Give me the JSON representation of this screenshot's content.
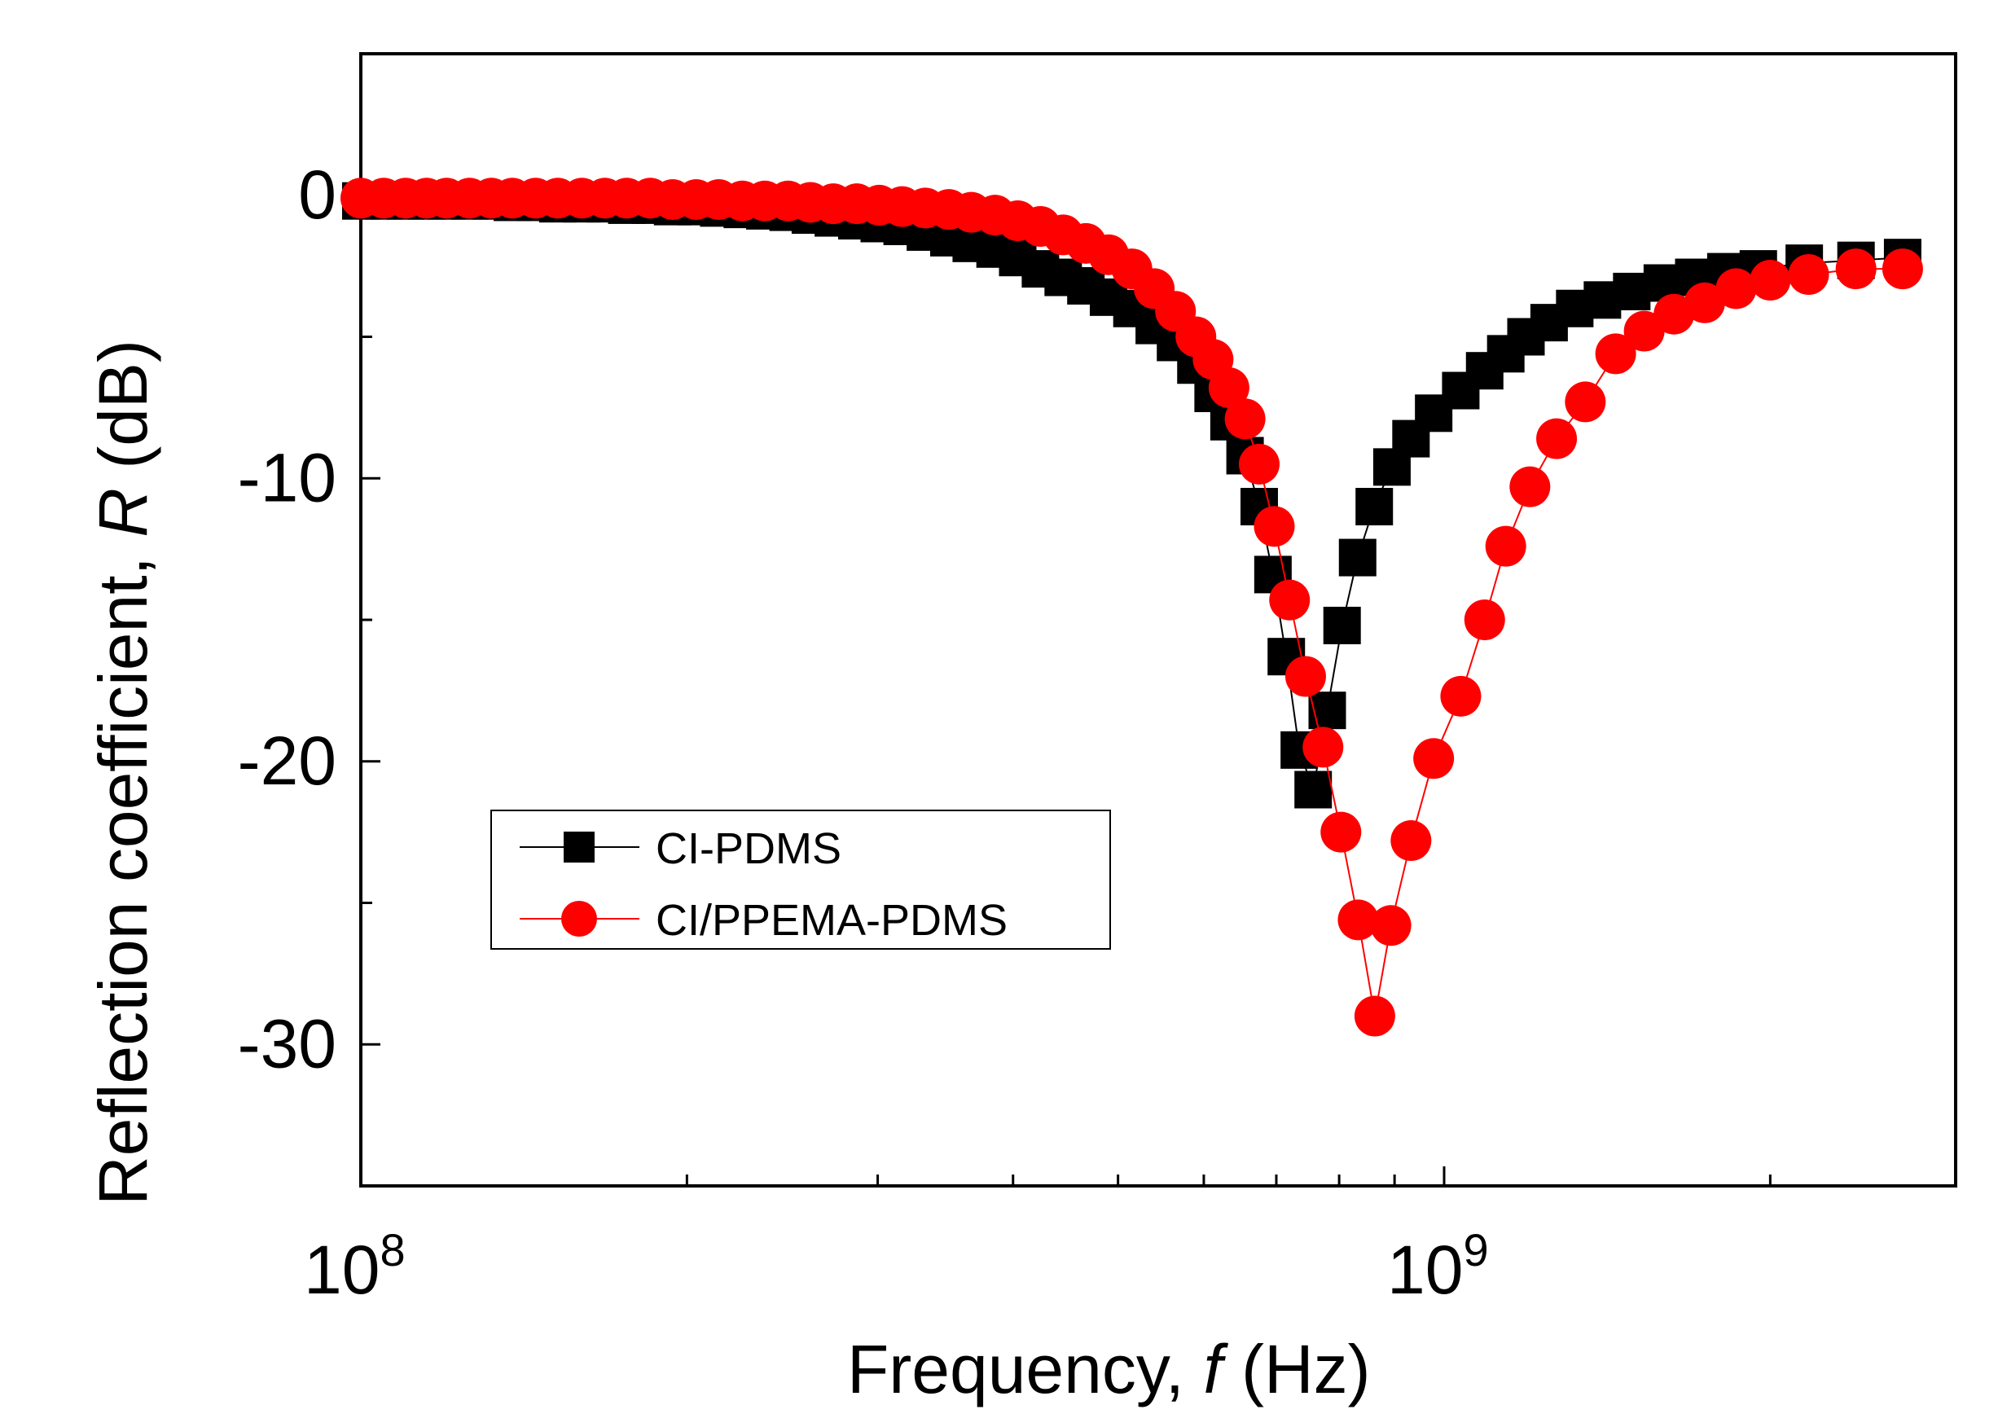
{
  "chart_data": {
    "type": "scatter",
    "title": "",
    "xlabel": {
      "main": "Frequency, ",
      "symbol": "f",
      "unit": " (Hz)"
    },
    "ylabel": {
      "main": "Reflection coefficient, ",
      "symbol": "R",
      "unit": " (dB)"
    },
    "x_scale": "log",
    "xlim": [
      100000000,
      2800000000
    ],
    "ylim": [
      -35,
      5
    ],
    "x_tick_labels": [
      {
        "value": 100000000,
        "base": "10",
        "exp": "8"
      },
      {
        "value": 1000000000,
        "base": "10",
        "exp": "9"
      }
    ],
    "y_ticks": [
      {
        "value": 0,
        "label": "0"
      },
      {
        "value": -10,
        "label": "-10"
      },
      {
        "value": -20,
        "label": "-20"
      },
      {
        "value": -30,
        "label": "-30"
      }
    ],
    "legend_position": "lower-left",
    "series": [
      {
        "name": "CI-PDMS",
        "marker": "square",
        "color": "#000000",
        "x": [
          100000000,
          105000000,
          110000000,
          115000000,
          120000000,
          126000000,
          132000000,
          138000000,
          145000000,
          152000000,
          160000000,
          168000000,
          176000000,
          185000000,
          194000000,
          204000000,
          214000000,
          225000000,
          236000000,
          248000000,
          260000000,
          273000000,
          287000000,
          301000000,
          316000000,
          332000000,
          349000000,
          366000000,
          385000000,
          404000000,
          424000000,
          445000000,
          467000000,
          490000000,
          515000000,
          540000000,
          565000000,
          590000000,
          612000000,
          633000000,
          655000000,
          675000000,
          695000000,
          715000000,
          735000000,
          757000000,
          780000000,
          805000000,
          832000000,
          862000000,
          895000000,
          932000000,
          978000000,
          1036000000,
          1090000000,
          1140000000,
          1190000000,
          1250000000,
          1320000000,
          1400000000,
          1490000000,
          1590000000,
          1700000000,
          1820000000,
          1950000000,
          2150000000,
          2400000000,
          2650000000
        ],
        "y": [
          -0.2,
          -0.2,
          -0.2,
          -0.2,
          -0.2,
          -0.2,
          -0.2,
          -0.25,
          -0.25,
          -0.3,
          -0.3,
          -0.3,
          -0.35,
          -0.35,
          -0.4,
          -0.4,
          -0.45,
          -0.5,
          -0.55,
          -0.6,
          -0.7,
          -0.8,
          -0.9,
          -1.0,
          -1.1,
          -1.3,
          -1.5,
          -1.7,
          -1.9,
          -2.2,
          -2.6,
          -2.9,
          -3.2,
          -3.6,
          -4.0,
          -4.6,
          -5.2,
          -6.0,
          -7.0,
          -8.0,
          -9.2,
          -11.0,
          -13.4,
          -16.3,
          -19.6,
          -21.0,
          -18.2,
          -15.2,
          -12.8,
          -11.0,
          -9.6,
          -8.6,
          -7.7,
          -6.9,
          -6.2,
          -5.6,
          -5.0,
          -4.5,
          -4.0,
          -3.7,
          -3.4,
          -3.1,
          -2.9,
          -2.7,
          -2.6,
          -2.4,
          -2.3,
          -2.2
        ]
      },
      {
        "name": "CI/PPEMA-PDMS",
        "marker": "circle",
        "color": "#ff0000",
        "x": [
          100000000,
          105000000,
          110000000,
          115000000,
          120000000,
          126000000,
          132000000,
          138000000,
          145000000,
          152000000,
          160000000,
          168000000,
          176000000,
          185000000,
          194000000,
          204000000,
          214000000,
          225000000,
          236000000,
          248000000,
          260000000,
          273000000,
          287000000,
          301000000,
          316000000,
          332000000,
          349000000,
          366000000,
          385000000,
          404000000,
          424000000,
          445000000,
          467000000,
          490000000,
          515000000,
          540000000,
          565000000,
          590000000,
          612000000,
          633000000,
          655000000,
          675000000,
          697000000,
          720000000,
          745000000,
          773000000,
          803000000,
          833000000,
          863000000,
          893000000,
          932000000,
          978000000,
          1036000000,
          1090000000,
          1140000000,
          1200000000,
          1270000000,
          1350000000,
          1440000000,
          1530000000,
          1630000000,
          1740000000,
          1860000000,
          2000000000,
          2170000000,
          2400000000,
          2650000000
        ],
        "y": [
          -0.1,
          -0.1,
          -0.1,
          -0.1,
          -0.1,
          -0.1,
          -0.1,
          -0.1,
          -0.1,
          -0.1,
          -0.1,
          -0.1,
          -0.1,
          -0.1,
          -0.15,
          -0.15,
          -0.15,
          -0.2,
          -0.2,
          -0.2,
          -0.25,
          -0.3,
          -0.3,
          -0.35,
          -0.4,
          -0.45,
          -0.5,
          -0.6,
          -0.7,
          -0.9,
          -1.1,
          -1.4,
          -1.7,
          -2.1,
          -2.6,
          -3.3,
          -4.1,
          -5.0,
          -5.8,
          -6.8,
          -7.9,
          -9.5,
          -11.7,
          -14.3,
          -17.0,
          -19.5,
          -22.5,
          -25.6,
          -29.0,
          -25.8,
          -22.8,
          -19.9,
          -17.7,
          -15.0,
          -12.4,
          -10.3,
          -8.6,
          -7.3,
          -5.6,
          -4.8,
          -4.2,
          -3.8,
          -3.3,
          -3.0,
          -2.8,
          -2.6,
          -2.6
        ]
      }
    ]
  }
}
